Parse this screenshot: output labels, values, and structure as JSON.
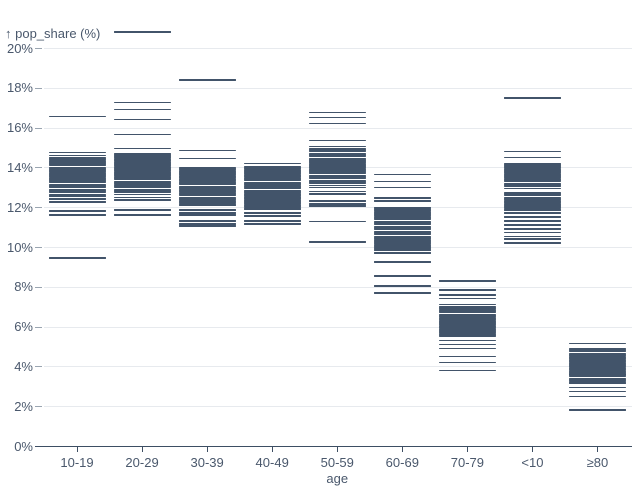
{
  "chart_data": {
    "type": "tick",
    "title": "",
    "ylabel_display": "↑ pop_share (%)",
    "ylabel": "pop_share (%)",
    "xlabel": "age",
    "ylim": [
      0,
      21
    ],
    "grid": true,
    "y_ticks": [
      {
        "value": 0,
        "label": "0%"
      },
      {
        "value": 2,
        "label": "2%"
      },
      {
        "value": 4,
        "label": "4%"
      },
      {
        "value": 6,
        "label": "6%"
      },
      {
        "value": 8,
        "label": "8%"
      },
      {
        "value": 10,
        "label": "10%"
      },
      {
        "value": 12,
        "label": "12%"
      },
      {
        "value": 14,
        "label": "14%"
      },
      {
        "value": 16,
        "label": "16%"
      },
      {
        "value": 18,
        "label": "18%"
      },
      {
        "value": 20,
        "label": "20%"
      }
    ],
    "categories": [
      "10-19",
      "20-29",
      "30-39",
      "40-49",
      "50-59",
      "60-69",
      "70-79",
      "<10",
      "≥80"
    ],
    "series": [
      {
        "age": "10-19",
        "values": [
          16.55,
          14.75,
          14.6,
          14.51,
          14.43,
          14.34,
          14.26,
          14.17,
          14.09,
          14.0,
          13.92,
          13.83,
          13.75,
          13.66,
          13.58,
          13.49,
          13.41,
          13.32,
          13.24,
          13.15,
          13.07,
          12.98,
          12.9,
          12.81,
          12.73,
          12.64,
          12.56,
          12.4,
          12.25,
          11.8,
          11.62,
          9.45
        ]
      },
      {
        "age": "20-29",
        "values": [
          20.8,
          17.25,
          16.9,
          16.4,
          15.65,
          14.95,
          14.7,
          14.62,
          14.53,
          14.45,
          14.37,
          14.29,
          14.21,
          14.12,
          14.04,
          13.96,
          13.88,
          13.8,
          13.71,
          13.63,
          13.55,
          13.47,
          13.39,
          13.3,
          13.22,
          13.14,
          13.06,
          12.98,
          12.89,
          12.81,
          12.73,
          12.65,
          12.5,
          12.35,
          11.85,
          11.62
        ]
      },
      {
        "age": "30-39",
        "values": [
          18.4,
          14.85,
          14.45,
          14.0,
          13.92,
          13.84,
          13.76,
          13.68,
          13.6,
          13.52,
          13.44,
          13.37,
          13.29,
          13.21,
          13.13,
          13.05,
          12.97,
          12.89,
          12.81,
          12.73,
          12.66,
          12.58,
          12.5,
          12.42,
          12.34,
          12.26,
          12.18,
          12.1,
          11.85,
          11.72,
          11.6,
          11.3,
          11.16,
          11.05
        ]
      },
      {
        "age": "40-49",
        "values": [
          14.2,
          14.05,
          13.97,
          13.89,
          13.81,
          13.73,
          13.65,
          13.57,
          13.49,
          13.41,
          13.33,
          13.25,
          13.17,
          13.09,
          13.01,
          12.93,
          12.85,
          12.77,
          12.7,
          12.62,
          12.54,
          12.46,
          12.38,
          12.3,
          12.22,
          12.14,
          12.06,
          11.98,
          11.9,
          11.7,
          11.56,
          11.3,
          11.16
        ]
      },
      {
        "age": "50-59",
        "values": [
          16.75,
          16.5,
          16.2,
          15.35,
          15.05,
          14.96,
          14.88,
          14.79,
          14.71,
          14.62,
          14.54,
          14.45,
          14.37,
          14.28,
          14.2,
          14.11,
          14.03,
          13.94,
          13.86,
          13.77,
          13.69,
          13.6,
          13.52,
          13.43,
          13.35,
          13.26,
          13.18,
          13.09,
          13.0,
          12.8,
          12.66,
          12.3,
          12.17,
          12.05,
          11.28,
          10.24
        ]
      },
      {
        "age": "60-69",
        "values": [
          13.65,
          13.3,
          13.0,
          12.45,
          12.3,
          11.95,
          11.87,
          11.79,
          11.7,
          11.62,
          11.54,
          11.45,
          11.37,
          11.29,
          11.2,
          11.12,
          11.04,
          10.95,
          10.87,
          10.79,
          10.7,
          10.62,
          10.54,
          10.45,
          10.37,
          10.29,
          10.2,
          10.12,
          10.04,
          9.95,
          9.85,
          9.7,
          9.25,
          8.55,
          8.05,
          7.7
        ]
      },
      {
        "age": "70-79",
        "values": [
          8.3,
          7.85,
          7.6,
          7.4,
          7.1,
          7.02,
          6.94,
          6.86,
          6.78,
          6.7,
          6.62,
          6.54,
          6.46,
          6.38,
          6.3,
          6.22,
          6.14,
          6.06,
          5.98,
          5.9,
          5.82,
          5.74,
          5.66,
          5.58,
          5.5,
          5.3,
          5.1,
          4.9,
          4.5,
          4.2,
          3.8
        ]
      },
      {
        "age": "<10",
        "values": [
          17.5,
          14.8,
          14.5,
          14.2,
          14.12,
          14.03,
          13.95,
          13.87,
          13.78,
          13.7,
          13.62,
          13.53,
          13.45,
          13.37,
          13.28,
          13.2,
          13.12,
          13.03,
          12.95,
          12.75,
          12.67,
          12.59,
          12.5,
          12.42,
          12.34,
          12.26,
          12.18,
          12.1,
          12.02,
          11.93,
          11.85,
          11.7,
          11.52,
          11.3,
          11.1,
          10.9,
          10.72,
          10.52,
          10.4,
          10.2
        ]
      },
      {
        "age": "≥80",
        "values": [
          5.15,
          4.9,
          4.82,
          4.74,
          4.66,
          4.58,
          4.5,
          4.42,
          4.34,
          4.27,
          4.19,
          4.11,
          4.03,
          3.95,
          3.87,
          3.79,
          3.71,
          3.63,
          3.56,
          3.48,
          3.4,
          3.32,
          3.24,
          3.16,
          2.95,
          2.75,
          2.5,
          1.8
        ]
      }
    ],
    "legend": "none",
    "colors": {
      "tick": "#42546a",
      "grid": "#e7eaee",
      "axis": "#3d4e63",
      "label": "#4a586c"
    }
  }
}
